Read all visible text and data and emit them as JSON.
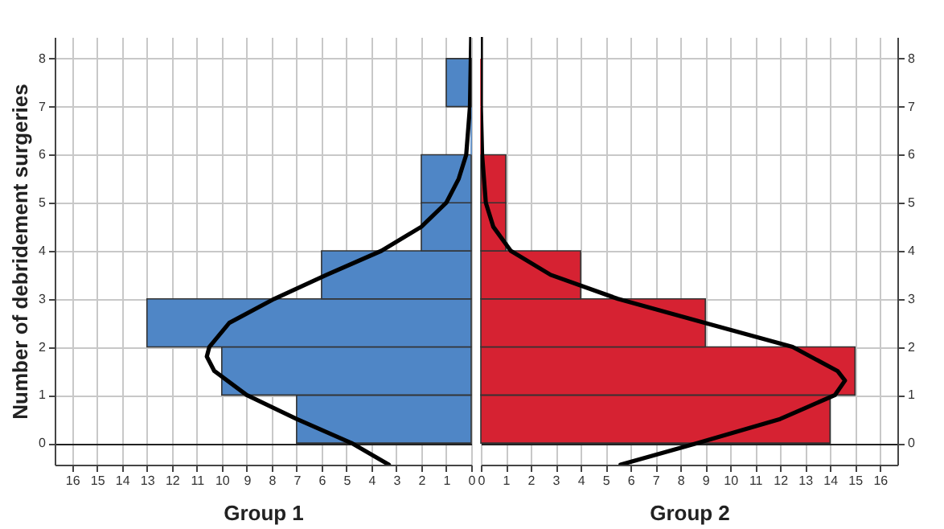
{
  "chart_data": [
    {
      "type": "histogram",
      "orientation": "horizontal",
      "xlabel": "Group 1",
      "ylabel": "Number of debridement surgeries",
      "bins": [
        0,
        1,
        2,
        3,
        4,
        5,
        6,
        7,
        8
      ],
      "series": [
        {
          "color": "#4f86c6",
          "values": [
            7,
            10,
            13,
            6,
            2,
            2,
            0,
            1
          ]
        },
        {
          "type": "line",
          "color": "#000000",
          "x": [
            -0.45,
            0,
            0.5,
            1,
            1.5,
            1.8,
            2,
            2.5,
            3,
            3.5,
            4,
            4.5,
            5,
            5.5,
            6,
            7,
            8.45
          ],
          "values": [
            3.3,
            4.8,
            7,
            9,
            10.3,
            10.6,
            10.5,
            9.7,
            7.9,
            5.8,
            3.6,
            2,
            1,
            0.5,
            0.2,
            0.05,
            0
          ]
        }
      ],
      "xlim": [
        16.7,
        0
      ],
      "xticks": [
        0,
        1,
        2,
        3,
        4,
        5,
        6,
        7,
        8,
        9,
        10,
        11,
        12,
        13,
        14,
        15,
        16
      ],
      "ylim": [
        -0.45,
        8.45
      ],
      "yticks": [
        0,
        1,
        2,
        3,
        4,
        5,
        6,
        7,
        8
      ],
      "grid": true
    },
    {
      "type": "histogram",
      "orientation": "horizontal",
      "xlabel": "Group 2",
      "bins": [
        0,
        1,
        2,
        3,
        4,
        5,
        6,
        7,
        8
      ],
      "series": [
        {
          "color": "#d62232",
          "values": [
            14,
            15,
            9,
            4,
            1,
            1,
            0,
            0
          ]
        },
        {
          "type": "line",
          "color": "#000000",
          "x": [
            -0.45,
            0,
            0.5,
            1,
            1.3,
            1.5,
            2,
            2.5,
            3,
            3.5,
            4,
            4.5,
            5,
            6,
            7,
            8.45
          ],
          "values": [
            5.6,
            8.7,
            12,
            14.2,
            14.6,
            14.3,
            12.5,
            9,
            5.5,
            2.8,
            1.2,
            0.5,
            0.2,
            0.05,
            0,
            0
          ]
        }
      ],
      "xlim": [
        0,
        16.7
      ],
      "xticks": [
        0,
        1,
        2,
        3,
        4,
        5,
        6,
        7,
        8,
        9,
        10,
        11,
        12,
        13,
        14,
        15,
        16
      ],
      "ylim": [
        -0.45,
        8.45
      ],
      "yticks": [
        0,
        1,
        2,
        3,
        4,
        5,
        6,
        7,
        8
      ],
      "grid": true
    }
  ]
}
